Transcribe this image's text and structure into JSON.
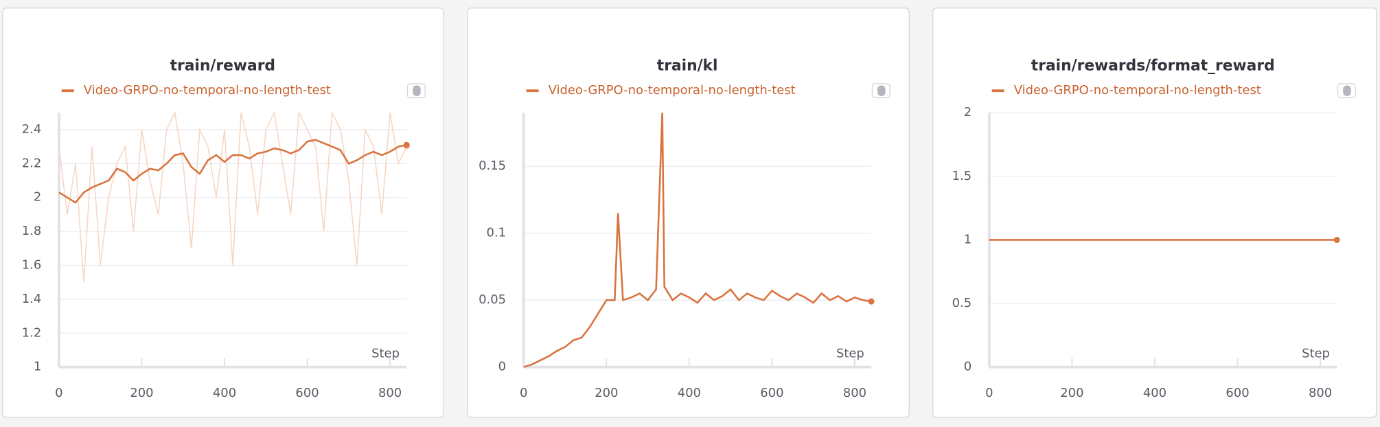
{
  "chart_data": [
    {
      "type": "line",
      "title": "train/reward",
      "xlabel": "Step",
      "legend": "top",
      "x": [
        0,
        20,
        40,
        60,
        80,
        100,
        120,
        140,
        160,
        180,
        200,
        220,
        240,
        260,
        280,
        300,
        320,
        340,
        360,
        380,
        400,
        420,
        440,
        460,
        480,
        500,
        520,
        540,
        560,
        580,
        600,
        620,
        640,
        660,
        680,
        700,
        720,
        740,
        760,
        780,
        800,
        820,
        840
      ],
      "xlim": [
        0,
        840
      ],
      "xticks": [
        0,
        200,
        400,
        600,
        800
      ],
      "ylim": [
        1,
        2.5
      ],
      "yticks": [
        1,
        1.2,
        1.4,
        1.6,
        1.8,
        2,
        2.2,
        2.4
      ],
      "grid": true,
      "series": [
        {
          "color": "#f5d6c3",
          "values": [
            2.3,
            1.9,
            2.2,
            1.5,
            2.3,
            1.6,
            2.0,
            2.2,
            2.3,
            1.8,
            2.4,
            2.1,
            1.9,
            2.4,
            2.5,
            2.2,
            1.7,
            2.4,
            2.3,
            2.0,
            2.4,
            1.6,
            2.5,
            2.3,
            1.9,
            2.4,
            2.5,
            2.2,
            1.9,
            2.5,
            2.4,
            2.3,
            1.8,
            2.5,
            2.4,
            2.1,
            1.6,
            2.4,
            2.3,
            1.9,
            2.5,
            2.2,
            2.3
          ]
        },
        {
          "name": "Video-GRPO-no-temporal-no-length-test",
          "color": "#d9733f",
          "values": [
            2.03,
            2.0,
            1.97,
            2.03,
            2.06,
            2.08,
            2.1,
            2.17,
            2.15,
            2.1,
            2.14,
            2.17,
            2.16,
            2.2,
            2.25,
            2.26,
            2.18,
            2.14,
            2.22,
            2.25,
            2.21,
            2.25,
            2.25,
            2.23,
            2.26,
            2.27,
            2.29,
            2.28,
            2.26,
            2.28,
            2.33,
            2.34,
            2.32,
            2.3,
            2.28,
            2.2,
            2.22,
            2.25,
            2.27,
            2.25,
            2.27,
            2.3,
            2.31
          ]
        }
      ]
    },
    {
      "type": "line",
      "title": "train/kl",
      "xlabel": "Step",
      "legend": "top",
      "x": [
        0,
        20,
        40,
        60,
        80,
        100,
        120,
        140,
        160,
        180,
        200,
        220,
        228,
        240,
        260,
        280,
        300,
        320,
        335,
        340,
        360,
        380,
        400,
        420,
        440,
        460,
        480,
        500,
        520,
        540,
        560,
        580,
        600,
        620,
        640,
        660,
        680,
        700,
        720,
        740,
        760,
        780,
        800,
        820,
        840
      ],
      "xlim": [
        0,
        840
      ],
      "xticks": [
        0,
        200,
        400,
        600,
        800
      ],
      "ylim": [
        0,
        0.19
      ],
      "yticks": [
        0,
        0.05,
        0.1,
        0.15
      ],
      "grid": true,
      "series": [
        {
          "name": "Video-GRPO-no-temporal-no-length-test",
          "color": "#d9733f",
          "values": [
            0,
            0.002,
            0.005,
            0.008,
            0.012,
            0.015,
            0.02,
            0.022,
            0.03,
            0.04,
            0.05,
            0.05,
            0.115,
            0.05,
            0.052,
            0.055,
            0.05,
            0.058,
            0.19,
            0.06,
            0.05,
            0.055,
            0.052,
            0.048,
            0.055,
            0.05,
            0.053,
            0.058,
            0.05,
            0.055,
            0.052,
            0.05,
            0.057,
            0.053,
            0.05,
            0.055,
            0.052,
            0.048,
            0.055,
            0.05,
            0.053,
            0.049,
            0.052,
            0.05,
            0.049
          ]
        }
      ]
    },
    {
      "type": "line",
      "title": "train/rewards/format_reward",
      "xlabel": "Step",
      "legend": "top",
      "x": [
        0,
        840
      ],
      "xlim": [
        0,
        840
      ],
      "xticks": [
        0,
        200,
        400,
        600,
        800
      ],
      "ylim": [
        0,
        2
      ],
      "yticks": [
        0,
        0.5,
        1,
        1.5,
        2
      ],
      "grid": true,
      "series": [
        {
          "name": "Video-GRPO-no-temporal-no-length-test",
          "color": "#d9733f",
          "values": [
            1,
            1
          ]
        }
      ]
    }
  ]
}
